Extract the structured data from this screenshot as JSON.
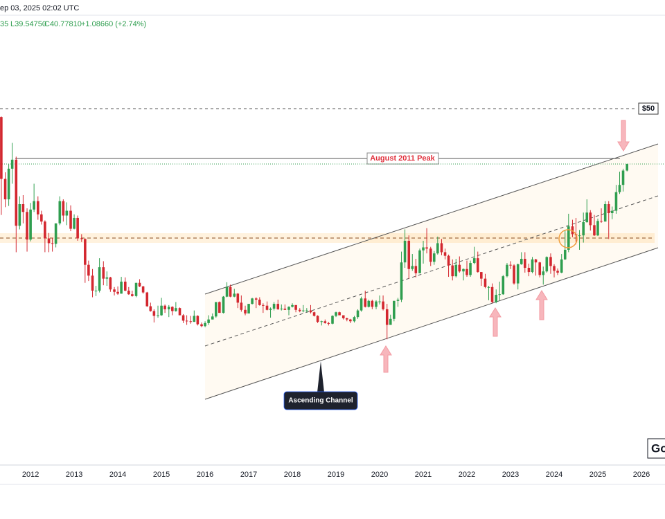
{
  "chart_data": {
    "type": "candlestick",
    "header_date": "ep 03, 2025 02:02 UTC",
    "status": [
      "35",
      "L39.54750",
      "C40.77810",
      "+1.08660 (+2.74%)"
    ],
    "up_color": "#2f9e4f",
    "down_color": "#d3272f",
    "xlim": [
      2011.3,
      2026.54
    ],
    "xticks": [
      2012,
      2013,
      2014,
      2015,
      2016,
      2017,
      2018,
      2019,
      2020,
      2021,
      2022,
      2023,
      2024,
      2025,
      2026
    ],
    "ylim": [
      -9.33,
      65.55
    ],
    "levels": [
      {
        "value": 50,
        "label": "$50"
      },
      {
        "value": 41.7,
        "label": "August 2011 Peak"
      }
    ],
    "annotations": {
      "channel": "Ascending Channel",
      "logo": "Go"
    },
    "x": [
      2011.33,
      2011.42,
      2011.5,
      2011.58,
      2011.67,
      2011.75,
      2011.83,
      2011.92,
      2012,
      2012.08,
      2012.17,
      2012.25,
      2012.33,
      2012.42,
      2012.5,
      2012.58,
      2012.67,
      2012.75,
      2012.83,
      2012.92,
      2013,
      2013.08,
      2013.17,
      2013.25,
      2013.33,
      2013.42,
      2013.5,
      2013.58,
      2013.67,
      2013.75,
      2013.83,
      2013.92,
      2014,
      2014.08,
      2014.17,
      2014.25,
      2014.33,
      2014.42,
      2014.5,
      2014.58,
      2014.67,
      2014.75,
      2014.83,
      2014.92,
      2015,
      2015.08,
      2015.17,
      2015.25,
      2015.33,
      2015.42,
      2015.5,
      2015.58,
      2015.67,
      2015.75,
      2015.83,
      2015.92,
      2016,
      2016.08,
      2016.17,
      2016.25,
      2016.33,
      2016.42,
      2016.5,
      2016.58,
      2016.67,
      2016.75,
      2016.83,
      2016.92,
      2017,
      2017.08,
      2017.17,
      2017.25,
      2017.33,
      2017.42,
      2017.5,
      2017.58,
      2017.67,
      2017.75,
      2017.83,
      2017.92,
      2018,
      2018.08,
      2018.17,
      2018.25,
      2018.33,
      2018.42,
      2018.5,
      2018.58,
      2018.67,
      2018.75,
      2018.83,
      2018.92,
      2019,
      2019.08,
      2019.17,
      2019.25,
      2019.33,
      2019.42,
      2019.5,
      2019.58,
      2019.67,
      2019.75,
      2019.83,
      2019.92,
      2020,
      2020.08,
      2020.17,
      2020.25,
      2020.33,
      2020.42,
      2020.5,
      2020.58,
      2020.67,
      2020.75,
      2020.83,
      2020.92,
      2021,
      2021.08,
      2021.17,
      2021.25,
      2021.33,
      2021.42,
      2021.5,
      2021.58,
      2021.67,
      2021.75,
      2021.83,
      2021.92,
      2022,
      2022.08,
      2022.17,
      2022.25,
      2022.33,
      2022.42,
      2022.5,
      2022.58,
      2022.67,
      2022.75,
      2022.83,
      2022.92,
      2023,
      2023.08,
      2023.17,
      2023.25,
      2023.33,
      2023.42,
      2023.5,
      2023.58,
      2023.67,
      2023.75,
      2023.83,
      2023.92,
      2024,
      2024.08,
      2024.17,
      2024.25,
      2024.33,
      2024.42,
      2024.5,
      2024.58,
      2024.67,
      2024.75,
      2024.83,
      2024.92,
      2025,
      2025.08,
      2025.17,
      2025.25,
      2025.33,
      2025.42,
      2025.5,
      2025.58,
      2025.67
    ],
    "open": [
      48.6,
      38.3,
      34.9,
      40.0,
      41.5,
      30.5,
      34.1,
      32.8,
      28.2,
      33.2,
      34.6,
      32.4,
      31.2,
      28.4,
      27.6,
      27.5,
      30.9,
      34.6,
      32.2,
      33.0,
      30.0,
      31.8,
      28.4,
      28.3,
      24.0,
      22.2,
      19.7,
      19.7,
      23.6,
      21.7,
      21.9,
      19.9,
      19.5,
      19.2,
      21.2,
      19.7,
      19.1,
      18.8,
      21.0,
      20.4,
      19.4,
      17.1,
      16.3,
      15.5,
      15.6,
      17.2,
      16.6,
      17.0,
      16.3,
      16.8,
      15.6,
      14.7,
      14.6,
      14.5,
      15.5,
      14.1,
      13.8,
      14.3,
      14.9,
      15.4,
      17.8,
      16.0,
      18.7,
      20.3,
      18.7,
      19.2,
      17.7,
      16.5,
      15.9,
      17.5,
      18.4,
      18.2,
      17.3,
      17.2,
      16.5,
      16.7,
      17.5,
      16.6,
      16.7,
      16.5,
      17.0,
      17.3,
      16.5,
      16.3,
      16.4,
      16.4,
      16.1,
      15.5,
      14.5,
      14.6,
      14.3,
      14.2,
      15.5,
      16.1,
      15.6,
      15.1,
      14.9,
      14.6,
      15.3,
      16.4,
      18.4,
      17.0,
      18.0,
      17.0,
      17.9,
      17.9,
      16.6,
      14.0,
      15.0,
      18.0,
      18.2,
      24.4,
      28.0,
      23.3,
      23.8,
      22.6,
      26.4,
      26.9,
      26.7,
      24.5,
      25.9,
      27.6,
      26.1,
      25.5,
      23.9,
      22.1,
      24.0,
      22.9,
      23.3,
      22.3,
      24.3,
      25.1,
      22.8,
      21.7,
      20.3,
      20.3,
      17.8,
      19.0,
      19.1,
      22.1,
      24.0,
      23.9,
      20.9,
      24.1,
      25.0,
      23.5,
      22.8,
      24.9,
      24.4,
      22.3,
      22.9,
      25.3,
      23.8,
      23.0,
      22.7,
      24.9,
      26.5,
      30.4,
      29.1,
      28.9,
      28.9,
      31.1,
      32.7,
      30.6,
      28.9,
      31.3,
      31.2,
      34.1,
      32.6,
      33.0,
      36.1,
      37.3,
      39.69
    ],
    "high": [
      48.7,
      39.4,
      40.8,
      44.3,
      42.0,
      35.4,
      35.6,
      33.4,
      34.3,
      37.5,
      35.4,
      33.0,
      31.4,
      29.3,
      28.5,
      30.9,
      35.4,
      34.9,
      34.4,
      33.9,
      32.4,
      32.2,
      29.1,
      28.4,
      24.7,
      23.3,
      20.5,
      25.1,
      24.6,
      22.9,
      22.0,
      20.3,
      20.4,
      22.0,
      21.9,
      20.3,
      19.7,
      21.0,
      21.6,
      20.5,
      19.5,
      17.7,
      16.6,
      17.2,
      18.5,
      17.4,
      17.3,
      17.1,
      17.8,
      16.9,
      15.8,
      15.6,
      15.5,
      16.4,
      15.6,
      14.4,
      14.6,
      15.6,
      15.9,
      17.8,
      17.9,
      18.8,
      21.1,
      20.7,
      20.0,
      19.3,
      18.9,
      17.2,
      17.5,
      18.5,
      18.6,
      18.6,
      17.6,
      17.9,
      16.9,
      17.8,
      18.2,
      17.4,
      17.4,
      17.1,
      17.6,
      17.3,
      16.8,
      17.3,
      16.8,
      17.3,
      16.2,
      15.6,
      14.7,
      14.9,
      14.5,
      15.6,
      16.2,
      16.2,
      15.6,
      15.2,
      15.0,
      15.5,
      16.6,
      18.7,
      19.7,
      18.2,
      18.2,
      18.1,
      18.9,
      18.9,
      17.5,
      15.7,
      18.0,
      18.5,
      26.2,
      29.9,
      28.9,
      25.8,
      25.0,
      26.7,
      28.0,
      30.1,
      27.0,
      26.3,
      28.7,
      28.3,
      26.7,
      25.7,
      24.9,
      25.0,
      25.4,
      23.4,
      24.7,
      24.7,
      27.0,
      26.2,
      22.8,
      22.5,
      20.5,
      20.9,
      19.9,
      21.2,
      22.3,
      24.3,
      24.6,
      24.1,
      24.2,
      26.1,
      26.1,
      24.2,
      25.3,
      25.0,
      24.5,
      23.7,
      25.4,
      25.9,
      24.1,
      23.4,
      25.8,
      29.8,
      32.5,
      31.5,
      31.8,
      29.8,
      32.7,
      34.9,
      33.1,
      32.3,
      31.7,
      33.4,
      34.6,
      34.6,
      33.7,
      37.3,
      39.5,
      40.0,
      40.83
    ],
    "low": [
      32.3,
      33.6,
      33.8,
      37.5,
      26.1,
      29.9,
      30.9,
      26.2,
      27.9,
      32.8,
      31.5,
      30.7,
      26.1,
      26.1,
      26.2,
      26.9,
      30.6,
      31.2,
      30.6,
      29.6,
      29.9,
      28.0,
      27.8,
      21.0,
      21.3,
      18.6,
      18.8,
      19.4,
      20.6,
      20.5,
      19.5,
      18.9,
      19.0,
      19.2,
      19.6,
      19.0,
      18.7,
      18.6,
      20.3,
      19.2,
      17.0,
      16.2,
      14.4,
      15.2,
      15.5,
      16.0,
      15.3,
      15.6,
      16.2,
      15.6,
      14.3,
      14.0,
      14.2,
      14.5,
      13.9,
      13.6,
      13.6,
      14.0,
      14.9,
      15.2,
      16.0,
      15.9,
      18.6,
      18.6,
      18.6,
      16.8,
      16.2,
      15.6,
      15.9,
      17.4,
      16.8,
      17.2,
      16.0,
      16.4,
      15.2,
      16.4,
      16.5,
      16.4,
      16.5,
      15.6,
      16.9,
      16.1,
      16.1,
      16.1,
      16.1,
      15.9,
      15.4,
      14.3,
      13.9,
      14.2,
      13.9,
      14.1,
      15.3,
      15.6,
      14.9,
      14.6,
      14.3,
      14.4,
      15.0,
      16.2,
      16.9,
      16.9,
      16.6,
      16.6,
      17.4,
      16.4,
      11.6,
      14.0,
      14.6,
      17.0,
      17.8,
      23.5,
      21.7,
      23.0,
      21.9,
      22.6,
      24.2,
      25.9,
      23.8,
      24.0,
      25.7,
      25.6,
      24.9,
      22.0,
      21.4,
      21.9,
      22.7,
      21.4,
      22.0,
      22.0,
      24.1,
      22.7,
      20.5,
      20.1,
      18.1,
      17.6,
      17.6,
      18.1,
      19.0,
      21.9,
      23.3,
      20.7,
      19.9,
      24.0,
      22.7,
      22.1,
      22.6,
      22.2,
      21.9,
      20.7,
      22.7,
      22.5,
      21.9,
      22.3,
      22.6,
      24.8,
      26.1,
      28.6,
      27.4,
      26.5,
      27.7,
      31.0,
      29.7,
      28.8,
      28.8,
      31.0,
      31.2,
      28.3,
      31.6,
      32.5,
      35.8,
      36.2,
      39.5475
    ],
    "close": [
      38.3,
      34.9,
      40.0,
      41.5,
      30.5,
      34.1,
      32.8,
      28.2,
      33.2,
      34.6,
      32.4,
      31.2,
      28.4,
      27.6,
      27.5,
      30.9,
      34.6,
      32.2,
      33.0,
      30.0,
      31.8,
      28.4,
      28.3,
      24.0,
      22.2,
      19.7,
      19.7,
      23.6,
      21.7,
      21.9,
      19.9,
      19.5,
      19.2,
      21.2,
      19.7,
      19.1,
      18.8,
      21.0,
      20.4,
      19.4,
      17.1,
      16.3,
      15.5,
      15.6,
      17.2,
      16.6,
      17.0,
      16.3,
      16.8,
      15.6,
      14.7,
      14.6,
      14.5,
      15.5,
      14.1,
      13.8,
      14.3,
      14.9,
      15.4,
      17.8,
      16.0,
      18.7,
      20.3,
      18.7,
      19.2,
      17.7,
      16.5,
      15.9,
      17.5,
      18.4,
      18.2,
      17.3,
      17.2,
      16.5,
      16.7,
      17.5,
      16.6,
      16.7,
      16.5,
      17.0,
      17.3,
      16.5,
      16.3,
      16.4,
      16.4,
      16.1,
      15.5,
      14.5,
      14.6,
      14.3,
      14.2,
      15.5,
      16.1,
      15.6,
      15.1,
      14.9,
      14.6,
      15.3,
      16.4,
      18.4,
      17.0,
      18.0,
      17.0,
      17.9,
      17.9,
      16.6,
      14.0,
      15.0,
      18.0,
      18.2,
      24.4,
      28.0,
      23.3,
      23.8,
      22.6,
      26.4,
      26.9,
      26.7,
      24.5,
      25.9,
      27.6,
      26.1,
      25.5,
      23.9,
      22.1,
      24.0,
      22.9,
      23.3,
      22.3,
      24.3,
      25.1,
      22.8,
      21.7,
      20.3,
      20.3,
      17.8,
      19.0,
      19.1,
      22.1,
      24.0,
      23.9,
      20.9,
      24.1,
      25.0,
      23.5,
      22.8,
      24.9,
      24.4,
      22.3,
      22.9,
      25.3,
      23.8,
      23.0,
      22.7,
      24.9,
      26.5,
      30.4,
      29.1,
      28.9,
      28.9,
      31.1,
      32.7,
      30.6,
      28.9,
      31.3,
      31.2,
      34.1,
      32.6,
      33.0,
      36.1,
      37.3,
      39.69,
      40.7781
    ]
  }
}
